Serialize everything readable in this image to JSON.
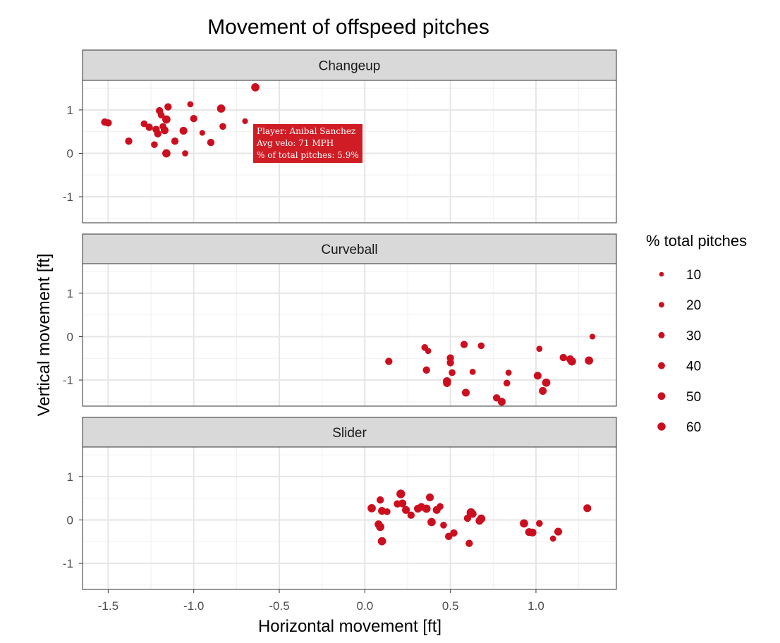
{
  "chart_data": {
    "type": "scatter",
    "title": "Movement of offspeed pitches",
    "xlabel": "Horizontal movement [ft]",
    "ylabel": "Vertical movement [ft]",
    "xlim": [
      -1.65,
      1.47
    ],
    "ylim": [
      -1.6,
      1.68
    ],
    "x_ticks": [
      -1.5,
      -1.0,
      -0.5,
      0.0,
      0.5,
      1.0
    ],
    "x_tick_labels": [
      "-1.5",
      "-1.0",
      "-0.5",
      "0.0",
      "0.5",
      "1.0"
    ],
    "y_ticks": [
      -1,
      0,
      1
    ],
    "y_tick_labels": [
      "-1",
      "0",
      "1"
    ],
    "grid": true,
    "point_color": "#cc0f1f",
    "legend": {
      "title": "% total pitches",
      "placement": "right",
      "entries": [
        {
          "label": "10",
          "value": 10
        },
        {
          "label": "20",
          "value": 20
        },
        {
          "label": "30",
          "value": 30
        },
        {
          "label": "40",
          "value": 40
        },
        {
          "label": "50",
          "value": 50
        },
        {
          "label": "60",
          "value": 60
        }
      ]
    },
    "tooltip": {
      "panel": 0,
      "lines": [
        "Player: Anibal Sanchez",
        "Avg velo: 71 MPH",
        "% of total pitches: 5.9%"
      ]
    },
    "panels": [
      {
        "name": "Changeup",
        "points": [
          [
            -1.52,
            0.72,
            25
          ],
          [
            -1.5,
            0.7,
            25
          ],
          [
            -1.38,
            0.28,
            25
          ],
          [
            -1.29,
            0.68,
            20
          ],
          [
            -1.26,
            0.6,
            25
          ],
          [
            -1.23,
            0.2,
            20
          ],
          [
            -1.22,
            0.55,
            25
          ],
          [
            -1.21,
            0.45,
            25
          ],
          [
            -1.2,
            0.98,
            25
          ],
          [
            -1.19,
            0.88,
            20
          ],
          [
            -1.18,
            0.62,
            20
          ],
          [
            -1.17,
            0.53,
            30
          ],
          [
            -1.16,
            0.78,
            35
          ],
          [
            -1.16,
            0.0,
            35
          ],
          [
            -1.15,
            1.07,
            25
          ],
          [
            -1.11,
            0.28,
            25
          ],
          [
            -1.06,
            0.52,
            30
          ],
          [
            -1.05,
            0.0,
            15
          ],
          [
            -1.02,
            1.13,
            15
          ],
          [
            -1.0,
            0.8,
            25
          ],
          [
            -0.95,
            0.47,
            12
          ],
          [
            -0.9,
            0.25,
            25
          ],
          [
            -0.84,
            1.03,
            35
          ],
          [
            -0.83,
            0.62,
            20
          ],
          [
            -0.7,
            0.74,
            12
          ],
          [
            -0.64,
            1.52,
            35
          ]
        ]
      },
      {
        "name": "Curveball",
        "points": [
          [
            0.14,
            -0.57,
            25
          ],
          [
            0.35,
            -0.25,
            20
          ],
          [
            0.36,
            -0.77,
            25
          ],
          [
            0.37,
            -0.33,
            15
          ],
          [
            0.48,
            -1.03,
            35
          ],
          [
            0.48,
            -1.07,
            30
          ],
          [
            0.5,
            -0.49,
            25
          ],
          [
            0.5,
            -0.6,
            25
          ],
          [
            0.51,
            -0.83,
            20
          ],
          [
            0.58,
            -0.18,
            25
          ],
          [
            0.59,
            -1.29,
            30
          ],
          [
            0.63,
            -0.81,
            15
          ],
          [
            0.68,
            -0.21,
            20
          ],
          [
            0.77,
            -1.41,
            25
          ],
          [
            0.8,
            -1.5,
            30
          ],
          [
            0.83,
            -1.07,
            20
          ],
          [
            0.84,
            -0.83,
            15
          ],
          [
            1.01,
            -0.9,
            30
          ],
          [
            1.02,
            -0.28,
            15
          ],
          [
            1.04,
            -1.25,
            30
          ],
          [
            1.06,
            -1.06,
            35
          ],
          [
            1.16,
            -0.48,
            25
          ],
          [
            1.2,
            -0.52,
            30
          ],
          [
            1.21,
            -0.57,
            35
          ],
          [
            1.31,
            -0.55,
            35
          ],
          [
            1.33,
            0.0,
            12
          ]
        ]
      },
      {
        "name": "Slider",
        "points": [
          [
            0.04,
            0.27,
            35
          ],
          [
            0.08,
            -0.1,
            30
          ],
          [
            0.09,
            0.46,
            25
          ],
          [
            0.09,
            -0.16,
            35
          ],
          [
            0.1,
            -0.49,
            35
          ],
          [
            0.1,
            0.21,
            30
          ],
          [
            0.13,
            0.19,
            20
          ],
          [
            0.19,
            0.37,
            25
          ],
          [
            0.21,
            0.6,
            40
          ],
          [
            0.22,
            0.38,
            30
          ],
          [
            0.24,
            0.23,
            30
          ],
          [
            0.27,
            0.11,
            25
          ],
          [
            0.31,
            0.26,
            30
          ],
          [
            0.33,
            0.3,
            30
          ],
          [
            0.36,
            0.26,
            35
          ],
          [
            0.38,
            0.52,
            30
          ],
          [
            0.39,
            -0.05,
            35
          ],
          [
            0.42,
            0.23,
            30
          ],
          [
            0.44,
            0.31,
            20
          ],
          [
            0.46,
            -0.12,
            20
          ],
          [
            0.49,
            -0.38,
            25
          ],
          [
            0.52,
            -0.3,
            25
          ],
          [
            0.6,
            0.04,
            25
          ],
          [
            0.61,
            -0.54,
            25
          ],
          [
            0.62,
            0.17,
            40
          ],
          [
            0.63,
            0.14,
            30
          ],
          [
            0.67,
            -0.02,
            30
          ],
          [
            0.68,
            0.03,
            35
          ],
          [
            0.93,
            -0.08,
            35
          ],
          [
            0.96,
            -0.28,
            30
          ],
          [
            0.98,
            -0.29,
            30
          ],
          [
            1.02,
            -0.08,
            20
          ],
          [
            1.1,
            -0.43,
            15
          ],
          [
            1.13,
            -0.27,
            30
          ],
          [
            1.3,
            0.27,
            30
          ]
        ]
      }
    ]
  }
}
